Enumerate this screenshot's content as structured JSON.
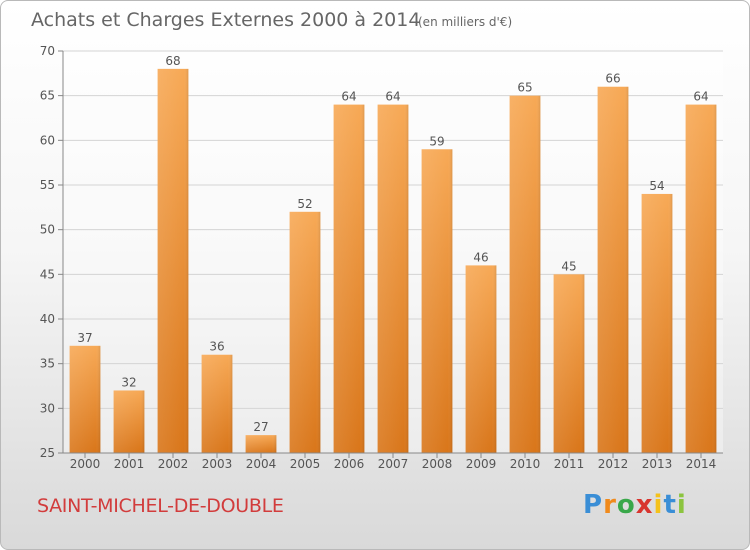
{
  "chart_data": {
    "type": "bar",
    "title": "Achats et Charges Externes 2000 à 2014",
    "subtitle": "(en milliers d'€)",
    "categories": [
      "2000",
      "2001",
      "2002",
      "2003",
      "2004",
      "2005",
      "2006",
      "2007",
      "2008",
      "2009",
      "2010",
      "2011",
      "2012",
      "2013",
      "2014"
    ],
    "values": [
      37,
      32,
      68,
      36,
      27,
      52,
      64,
      64,
      59,
      46,
      65,
      45,
      66,
      54,
      64
    ],
    "ylim": [
      25,
      70
    ],
    "yticks": [
      "25",
      "30",
      "35",
      "40",
      "45",
      "50",
      "55",
      "60",
      "65",
      "70"
    ],
    "grid": true,
    "bar_color": "#f0922e",
    "bar_color_light": "#f7a956",
    "bar_color_dark": "#d9761a"
  },
  "footer": {
    "commune": "SAINT-MICHEL-DE-DOUBLE",
    "brand_letters": [
      {
        "ch": "P",
        "color": "#3a8ed6"
      },
      {
        "ch": "r",
        "color": "#f08a1c"
      },
      {
        "ch": "o",
        "color": "#39a84a"
      },
      {
        "ch": "x",
        "color": "#d8352f"
      },
      {
        "ch": "i",
        "color": "#f4c21b"
      },
      {
        "ch": "t",
        "color": "#3a8ed6"
      },
      {
        "ch": "i",
        "color": "#8cc43f"
      }
    ]
  }
}
